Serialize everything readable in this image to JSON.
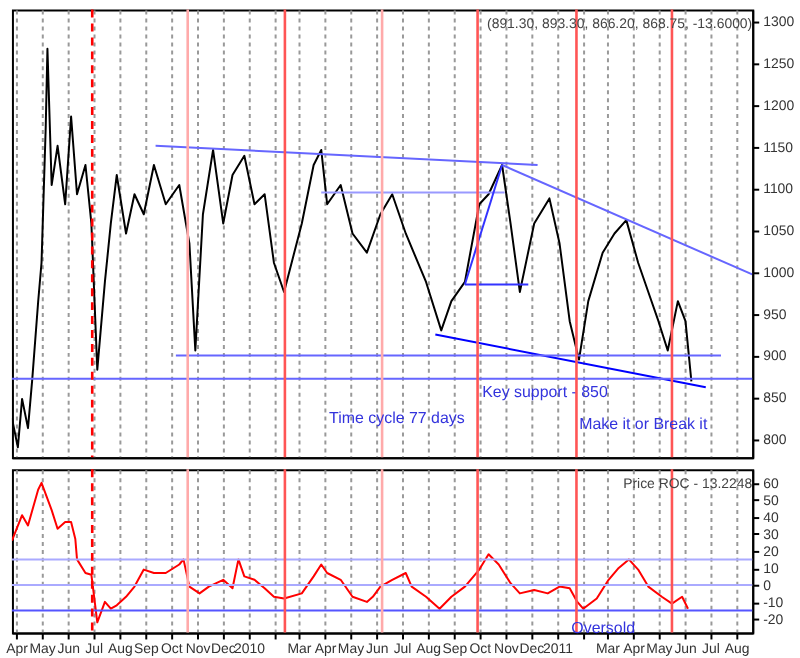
{
  "chart_data": [
    {
      "type": "line",
      "title": "(891.30, 893.30, 866.20, 868.75, -13.6000)",
      "xlim": [
        "2009-03-27",
        "2011-08-20"
      ],
      "ylim": [
        778,
        1314
      ],
      "yticks": [
        800,
        850,
        900,
        950,
        1000,
        1050,
        1100,
        1150,
        1200,
        1250,
        1300
      ],
      "xticks": [
        {
          "value": "2009-04-01",
          "label": null
        },
        {
          "value": "2009-05-01",
          "label": null
        },
        {
          "value": "2009-06-01",
          "label": null
        },
        {
          "value": "2009-07-01",
          "label": null
        },
        {
          "value": "2009-08-01",
          "label": null
        },
        {
          "value": "2009-09-01",
          "label": null
        },
        {
          "value": "2009-10-01",
          "label": null
        },
        {
          "value": "2009-11-01",
          "label": null
        },
        {
          "value": "2009-12-01",
          "label": null
        },
        {
          "value": "2010-01-01",
          "label": null
        },
        {
          "value": "2010-02-01",
          "label": null
        },
        {
          "value": "2010-03-01",
          "label": null
        },
        {
          "value": "2010-04-01",
          "label": null
        },
        {
          "value": "2010-05-01",
          "label": null
        },
        {
          "value": "2010-06-01",
          "label": null
        },
        {
          "value": "2010-07-01",
          "label": null
        },
        {
          "value": "2010-08-01",
          "label": null
        },
        {
          "value": "2010-09-01",
          "label": null
        },
        {
          "value": "2010-10-01",
          "label": null
        },
        {
          "value": "2010-11-01",
          "label": null
        },
        {
          "value": "2010-12-01",
          "label": null
        },
        {
          "value": "2011-01-01",
          "label": null
        },
        {
          "value": "2011-02-01",
          "label": null
        },
        {
          "value": "2011-03-01",
          "label": null
        },
        {
          "value": "2011-04-01",
          "label": null
        },
        {
          "value": "2011-05-01",
          "label": null
        },
        {
          "value": "2011-06-01",
          "label": null
        },
        {
          "value": "2011-07-01",
          "label": null
        },
        {
          "value": "2011-08-01",
          "label": null
        }
      ],
      "grid": "x",
      "tick_labels": "y",
      "series": [
        {
          "color": "#000000",
          "x": [
            "2009-03-27",
            "2009-04-03",
            "2009-04-08",
            "2009-04-15",
            "2009-04-20",
            "2009-04-27",
            "2009-05-01",
            "2009-05-06",
            "2009-05-08",
            "2009-05-13",
            "2009-05-20",
            "2009-05-29",
            "2009-06-05",
            "2009-06-12",
            "2009-06-22",
            "2009-06-29",
            "2009-07-06",
            "2009-07-15",
            "2009-07-22",
            "2009-07-29",
            "2009-08-09",
            "2009-08-19",
            "2009-08-30",
            "2009-09-11",
            "2009-09-25",
            "2009-10-11",
            "2009-10-23",
            "2009-10-30",
            "2009-11-08",
            "2009-11-20",
            "2009-12-02",
            "2009-12-13",
            "2009-12-27",
            "2010-01-08",
            "2010-01-20",
            "2010-01-31",
            "2010-02-12",
            "2010-03-05",
            "2010-03-19",
            "2010-03-28",
            "2010-04-04",
            "2010-04-20",
            "2010-05-04",
            "2010-05-21",
            "2010-06-06",
            "2010-06-20",
            "2010-07-06",
            "2010-07-30",
            "2010-08-17",
            "2010-08-29",
            "2010-09-14",
            "2010-10-01",
            "2010-10-12",
            "2010-10-28",
            "2010-11-07",
            "2010-11-18",
            "2010-12-05",
            "2010-12-23",
            "2011-01-04",
            "2011-01-16",
            "2011-01-27",
            "2011-02-07",
            "2011-02-24",
            "2011-03-10",
            "2011-03-24",
            "2011-04-07",
            "2011-04-19",
            "2011-05-01",
            "2011-05-12",
            "2011-05-24",
            "2011-06-02",
            "2011-06-09"
          ],
          "values": [
            825,
            790,
            848,
            813,
            871,
            964,
            1011,
            1174,
            1267,
            1104,
            1151,
            1081,
            1186,
            1093,
            1128,
            1058,
            883,
            988,
            1058,
            1116,
            1046,
            1093,
            1069,
            1128,
            1081,
            1104,
            1034,
            906,
            1069,
            1146,
            1058,
            1116,
            1139,
            1081,
            1093,
            1011,
            976,
            1058,
            1128,
            1146,
            1081,
            1104,
            1046,
            1023,
            1069,
            1093,
            1046,
            988,
            930,
            965,
            988,
            1081,
            1093,
            1128,
            1058,
            976,
            1058,
            1088,
            1034,
            941,
            895,
            965,
            1023,
            1046,
            1062,
            1011,
            976,
            941,
            906,
            965,
            941,
            869
          ]
        },
        {
          "color": "#6666ff",
          "x": [
            "2009-09-13",
            "2010-12-09"
          ],
          "values": [
            1151,
            1128
          ]
        },
        {
          "color": "#9999ff",
          "x": [
            "2010-03-28",
            "2010-10-31"
          ],
          "values": [
            1095,
            1095
          ]
        },
        {
          "color": "#6666ff",
          "x": [
            "2010-10-28",
            "2011-08-20"
          ],
          "values": [
            1128,
            997
          ]
        },
        {
          "color": "#3333ff",
          "x": [
            "2010-09-14",
            "2010-11-28"
          ],
          "values": [
            985,
            985
          ]
        },
        {
          "color": "#3333ff",
          "x": [
            "2010-09-14",
            "2010-10-28"
          ],
          "values": [
            985,
            1128
          ]
        },
        {
          "color": "#0000ff",
          "x": [
            "2010-08-10",
            "2011-06-26"
          ],
          "values": [
            925,
            862
          ]
        },
        {
          "color": "#6666ff",
          "x": [
            "2009-10-07",
            "2011-07-14"
          ],
          "values": [
            900,
            900
          ]
        }
      ],
      "ref_lines": [
        {
          "axis": "y",
          "value": 872,
          "label": "Key support - 850",
          "color": "#6666ff"
        },
        {
          "axis": "x",
          "value": "2009-06-30",
          "color": "#ff0000",
          "line_style": "dashed"
        },
        {
          "axis": "x",
          "value": "2009-10-21",
          "color": "#ffaaaa"
        },
        {
          "axis": "x",
          "value": "2010-02-13",
          "color": "#ff5555"
        },
        {
          "axis": "x",
          "value": "2010-06-08",
          "color": "#ffaaaa"
        },
        {
          "axis": "x",
          "value": "2010-09-29",
          "color": "#ff5555"
        },
        {
          "axis": "x",
          "value": "2011-01-24",
          "color": "#ff5555"
        },
        {
          "axis": "x",
          "value": "2011-05-17",
          "color": "#ff5555"
        }
      ],
      "annotations": [
        "Time cycle 77 days",
        {
          "text": "Make it or Break it",
          "x": "2011-06-09",
          "y": 869
        }
      ]
    },
    {
      "type": "line",
      "title": "Price ROC - 13.2248",
      "xlim": [
        "2009-03-27",
        "2011-08-20"
      ],
      "ylim": [
        -28,
        68
      ],
      "yticks": [
        -20,
        -10,
        0,
        10,
        20,
        30,
        40,
        50,
        60
      ],
      "xticks": [
        {
          "value": "2009-04-01",
          "label": "Apr"
        },
        {
          "value": "2009-05-01",
          "label": "May"
        },
        {
          "value": "2009-06-01",
          "label": "Jun"
        },
        {
          "value": "2009-07-01",
          "label": "Jul"
        },
        {
          "value": "2009-08-01",
          "label": "Aug"
        },
        {
          "value": "2009-09-01",
          "label": "Sep"
        },
        {
          "value": "2009-10-01",
          "label": "Oct"
        },
        {
          "value": "2009-11-01",
          "label": "Nov"
        },
        {
          "value": "2009-12-01",
          "label": "Dec"
        },
        {
          "value": "2010-01-01",
          "label": "2010"
        },
        {
          "value": "2010-02-01",
          "label": null
        },
        {
          "value": "2010-03-01",
          "label": "Mar"
        },
        {
          "value": "2010-04-01",
          "label": "Apr"
        },
        {
          "value": "2010-05-01",
          "label": "May"
        },
        {
          "value": "2010-06-01",
          "label": "Jun"
        },
        {
          "value": "2010-07-01",
          "label": "Jul"
        },
        {
          "value": "2010-08-01",
          "label": "Aug"
        },
        {
          "value": "2010-09-01",
          "label": "Sep"
        },
        {
          "value": "2010-10-01",
          "label": "Oct"
        },
        {
          "value": "2010-11-01",
          "label": "Nov"
        },
        {
          "value": "2010-12-01",
          "label": "Dec"
        },
        {
          "value": "2011-01-01",
          "label": "2011"
        },
        {
          "value": "2011-02-01",
          "label": null
        },
        {
          "value": "2011-03-01",
          "label": "Mar"
        },
        {
          "value": "2011-04-01",
          "label": "Apr"
        },
        {
          "value": "2011-05-01",
          "label": "May"
        },
        {
          "value": "2011-06-01",
          "label": "Jun"
        },
        {
          "value": "2011-07-01",
          "label": "Jul"
        },
        {
          "value": "2011-08-01",
          "label": "Aug"
        }
      ],
      "grid": "x",
      "series": [
        {
          "color": "#ff0000",
          "x": [
            "2009-03-27",
            "2009-04-08",
            "2009-04-15",
            "2009-04-27",
            "2009-05-01",
            "2009-05-13",
            "2009-05-20",
            "2009-05-29",
            "2009-06-05",
            "2009-06-10",
            "2009-06-12",
            "2009-06-22",
            "2009-06-29",
            "2009-07-06",
            "2009-07-15",
            "2009-07-22",
            "2009-07-29",
            "2009-08-09",
            "2009-08-19",
            "2009-08-30",
            "2009-09-11",
            "2009-09-25",
            "2009-10-11",
            "2009-10-16",
            "2009-10-23",
            "2009-11-04",
            "2009-11-15",
            "2009-12-02",
            "2009-12-13",
            "2009-12-20",
            "2009-12-27",
            "2010-01-08",
            "2010-01-20",
            "2010-01-31",
            "2010-02-12",
            "2010-03-05",
            "2010-03-19",
            "2010-03-28",
            "2010-04-04",
            "2010-04-20",
            "2010-05-04",
            "2010-05-21",
            "2010-05-28",
            "2010-06-06",
            "2010-06-20",
            "2010-07-06",
            "2010-07-13",
            "2010-07-30",
            "2010-08-15",
            "2010-08-29",
            "2010-09-14",
            "2010-10-01",
            "2010-10-12",
            "2010-10-24",
            "2010-11-07",
            "2010-11-18",
            "2010-12-05",
            "2010-12-21",
            "2011-01-04",
            "2011-01-16",
            "2011-01-25",
            "2011-02-01",
            "2011-02-17",
            "2011-03-03",
            "2011-03-15",
            "2011-03-27",
            "2011-04-07",
            "2011-04-19",
            "2011-05-05",
            "2011-05-17",
            "2011-05-29",
            "2011-06-05"
          ],
          "values": [
            26,
            41,
            35,
            56,
            60,
            44,
            33,
            37,
            37,
            27,
            15,
            7,
            6,
            -22,
            -10,
            -14,
            -12,
            -7,
            -1,
            9,
            7,
            7,
            12,
            15,
            -1,
            -5,
            -1,
            3,
            -2,
            15,
            5,
            3,
            -2,
            -7,
            -8,
            -5,
            5,
            12,
            7,
            3,
            -7,
            -10,
            -7,
            -1,
            3,
            7,
            -1,
            -7,
            -14,
            -7,
            -1,
            9,
            18,
            12,
            1,
            -5,
            -3,
            -5,
            -1,
            -2,
            -10,
            -14,
            -8,
            3,
            10,
            15,
            9,
            -1,
            -7,
            -11,
            -7,
            -14
          ]
        }
      ],
      "ref_lines": [
        {
          "axis": "y",
          "value": 15,
          "color": "#aaaaff"
        },
        {
          "axis": "y",
          "value": 0,
          "color": "#aaaaff"
        },
        {
          "axis": "y",
          "value": -15,
          "color": "#5555ff"
        },
        {
          "axis": "x",
          "value": "2009-06-30",
          "color": "#ff0000",
          "line_style": "dashed"
        },
        {
          "axis": "x",
          "value": "2009-10-21",
          "color": "#ffaaaa"
        },
        {
          "axis": "x",
          "value": "2010-02-13",
          "color": "#ff5555"
        },
        {
          "axis": "x",
          "value": "2010-06-08",
          "color": "#ffaaaa"
        },
        {
          "axis": "x",
          "value": "2010-09-29",
          "color": "#ff5555"
        },
        {
          "axis": "x",
          "value": "2011-01-24",
          "color": "#ff5555"
        },
        {
          "axis": "x",
          "value": "2011-05-17",
          "color": "#ff5555"
        }
      ],
      "annotations": [
        {
          "text": "Oversold",
          "x": "2011-01-25",
          "y": -14
        }
      ]
    }
  ]
}
